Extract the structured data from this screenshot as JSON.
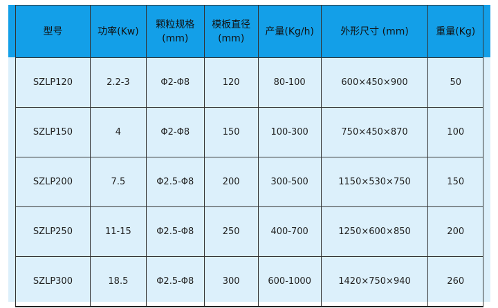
{
  "colors": {
    "header_bg": "#139fe8",
    "row_bg": "#dcf0fb",
    "border": "#333333"
  },
  "table": {
    "headers": [
      "型号",
      "功率(Kw)",
      "颗粒规格\n(mm)",
      "模板直径\n(mm)",
      "产量(Kg/h)",
      "外形尺寸 (mm)",
      "重量(Kg)"
    ],
    "rows": [
      [
        "SZLP120",
        "2.2-3",
        "Φ2-Φ8",
        "120",
        "80-100",
        "600×450×900",
        "50"
      ],
      [
        "SZLP150",
        "4",
        "Φ2-Φ8",
        "150",
        "100-300",
        "750×450×870",
        "100"
      ],
      [
        "SZLP200",
        "7.5",
        "Φ2.5-Φ8",
        "200",
        "300-500",
        "1150×530×750",
        "150"
      ],
      [
        "SZLP250",
        "11-15",
        "Φ2.5-Φ8",
        "250",
        "400-700",
        "1250×600×850",
        "200"
      ],
      [
        "SZLP300",
        "18.5",
        "Φ2.5-Φ8",
        "300",
        "600-1000",
        "1420×750×940",
        "260"
      ]
    ]
  }
}
